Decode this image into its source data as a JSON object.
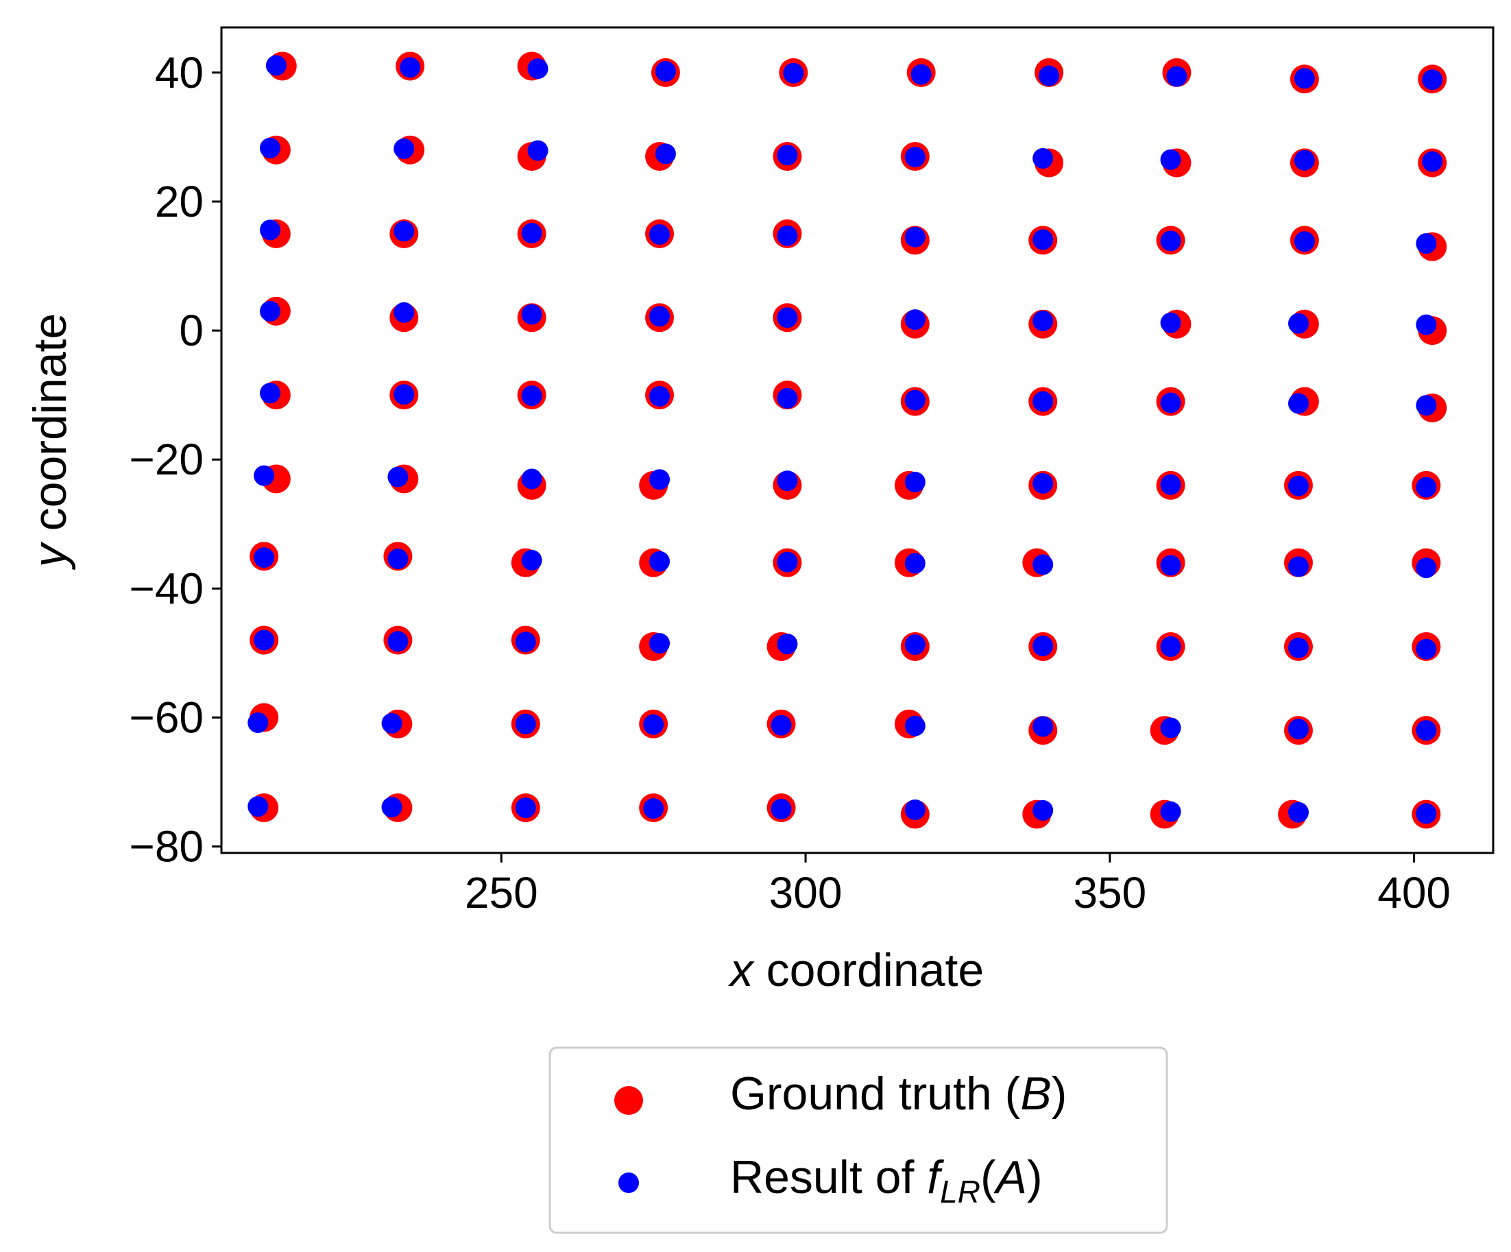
{
  "chart_data": {
    "type": "scatter",
    "title": "",
    "xlabel": {
      "var": "x",
      "rest": " coordinate"
    },
    "ylabel": {
      "var": "y",
      "rest": " coordinate"
    },
    "xlim": [
      204,
      413
    ],
    "ylim": [
      -81,
      47
    ],
    "xticks": [
      250,
      300,
      350,
      400
    ],
    "yticks": [
      -80,
      -60,
      -40,
      -20,
      0,
      20,
      40
    ],
    "grid": false,
    "legend_placement": "below",
    "x": [
      [
        213,
        234,
        255,
        276,
        297,
        318,
        339,
        360,
        381,
        402
      ],
      [
        212,
        234,
        255,
        276,
        297,
        318,
        339,
        361,
        382,
        403
      ],
      [
        212,
        234,
        255,
        276,
        297,
        318,
        339,
        360,
        382,
        403
      ],
      [
        212,
        234,
        255,
        276,
        297,
        318,
        339,
        360,
        382,
        403
      ],
      [
        212,
        233,
        254,
        275,
        296,
        318,
        339,
        360,
        381,
        402
      ],
      [
        212,
        233,
        254,
        275,
        296,
        317,
        339,
        360,
        381,
        402
      ],
      [
        211,
        233,
        254,
        275,
        296,
        317,
        338,
        360,
        381,
        402
      ],
      [
        211,
        233,
        254,
        275,
        296,
        317,
        339,
        360,
        381,
        402
      ],
      [
        211,
        233,
        254,
        275,
        296,
        317,
        339,
        359,
        381,
        402
      ],
      [
        211,
        232,
        254,
        275,
        296,
        317,
        338,
        359,
        380,
        402
      ]
    ],
    "y": [
      40,
      28,
      15,
      2,
      -10,
      -23,
      -36,
      -48,
      -61,
      -74
    ],
    "series": [
      {
        "name": "Ground truth",
        "name_var": "B",
        "color": "#ff0000",
        "marker": "large-circle",
        "points": [
          [
            [
              214,
              41
            ],
            [
              235,
              41
            ],
            [
              255,
              41
            ],
            [
              277,
              40
            ],
            [
              298,
              40
            ],
            [
              319,
              40
            ],
            [
              340,
              40
            ],
            [
              361,
              40
            ],
            [
              382,
              39
            ],
            [
              403,
              39
            ]
          ],
          [
            [
              213,
              28
            ],
            [
              235,
              28
            ],
            [
              255,
              27
            ],
            [
              276,
              27
            ],
            [
              297,
              27
            ],
            [
              318,
              27
            ],
            [
              340,
              26
            ],
            [
              361,
              26
            ],
            [
              382,
              26
            ],
            [
              403,
              26
            ]
          ],
          [
            [
              213,
              15
            ],
            [
              234,
              15
            ],
            [
              255,
              15
            ],
            [
              276,
              15
            ],
            [
              297,
              15
            ],
            [
              318,
              14
            ],
            [
              339,
              14
            ],
            [
              360,
              14
            ],
            [
              382,
              14
            ],
            [
              403,
              13
            ]
          ],
          [
            [
              213,
              3
            ],
            [
              234,
              2
            ],
            [
              255,
              2
            ],
            [
              276,
              2
            ],
            [
              297,
              2
            ],
            [
              318,
              1
            ],
            [
              339,
              1
            ],
            [
              361,
              1
            ],
            [
              382,
              1
            ],
            [
              403,
              0
            ]
          ],
          [
            [
              213,
              -10
            ],
            [
              234,
              -10
            ],
            [
              255,
              -10
            ],
            [
              276,
              -10
            ],
            [
              297,
              -10
            ],
            [
              318,
              -11
            ],
            [
              339,
              -11
            ],
            [
              360,
              -11
            ],
            [
              382,
              -11
            ],
            [
              403,
              -12
            ]
          ],
          [
            [
              213,
              -23
            ],
            [
              234,
              -23
            ],
            [
              255,
              -24
            ],
            [
              275,
              -24
            ],
            [
              297,
              -24
            ],
            [
              317,
              -24
            ],
            [
              339,
              -24
            ],
            [
              360,
              -24
            ],
            [
              381,
              -24
            ],
            [
              402,
              -24
            ]
          ],
          [
            [
              211,
              -35
            ],
            [
              233,
              -35
            ],
            [
              254,
              -36
            ],
            [
              275,
              -36
            ],
            [
              297,
              -36
            ],
            [
              317,
              -36
            ],
            [
              338,
              -36
            ],
            [
              360,
              -36
            ],
            [
              381,
              -36
            ],
            [
              402,
              -36
            ]
          ],
          [
            [
              211,
              -48
            ],
            [
              233,
              -48
            ],
            [
              254,
              -48
            ],
            [
              275,
              -49
            ],
            [
              296,
              -49
            ],
            [
              318,
              -49
            ],
            [
              339,
              -49
            ],
            [
              360,
              -49
            ],
            [
              381,
              -49
            ],
            [
              402,
              -49
            ]
          ],
          [
            [
              211,
              -60
            ],
            [
              233,
              -61
            ],
            [
              254,
              -61
            ],
            [
              275,
              -61
            ],
            [
              296,
              -61
            ],
            [
              317,
              -61
            ],
            [
              339,
              -62
            ],
            [
              359,
              -62
            ],
            [
              381,
              -62
            ],
            [
              402,
              -62
            ]
          ],
          [
            [
              211,
              -74
            ],
            [
              233,
              -74
            ],
            [
              254,
              -74
            ],
            [
              275,
              -74
            ],
            [
              296,
              -74
            ],
            [
              318,
              -75
            ],
            [
              338,
              -75
            ],
            [
              359,
              -75
            ],
            [
              380,
              -75
            ],
            [
              402,
              -75
            ]
          ]
        ]
      },
      {
        "name": "Result of",
        "name_var": "f",
        "name_sub": "LR",
        "name_arg": "A",
        "color": "#0000ff",
        "marker": "small-circle",
        "points": [
          [
            [
              213,
              41.1
            ],
            [
              235,
              40.8
            ],
            [
              256,
              40.6
            ],
            [
              277,
              40.2
            ],
            [
              298,
              39.9
            ],
            [
              319,
              39.7
            ],
            [
              340,
              39.5
            ],
            [
              361,
              39.4
            ],
            [
              382,
              39.1
            ],
            [
              403,
              38.9
            ]
          ],
          [
            [
              212,
              28.3
            ],
            [
              234,
              28.2
            ],
            [
              256,
              27.9
            ],
            [
              277,
              27.4
            ],
            [
              297,
              27.2
            ],
            [
              318,
              26.9
            ],
            [
              339,
              26.7
            ],
            [
              360,
              26.5
            ],
            [
              382,
              26.4
            ],
            [
              403,
              26.2
            ]
          ],
          [
            [
              212,
              15.6
            ],
            [
              234,
              15.4
            ],
            [
              255,
              15.1
            ],
            [
              276,
              14.9
            ],
            [
              297,
              14.7
            ],
            [
              318,
              14.5
            ],
            [
              339,
              14.1
            ],
            [
              360,
              13.9
            ],
            [
              382,
              13.8
            ],
            [
              402,
              13.5
            ]
          ],
          [
            [
              212,
              3
            ],
            [
              234,
              2.8
            ],
            [
              255,
              2.5
            ],
            [
              276,
              2.2
            ],
            [
              297,
              2
            ],
            [
              318,
              1.7
            ],
            [
              339,
              1.5
            ],
            [
              360,
              1.2
            ],
            [
              381,
              1.1
            ],
            [
              402,
              0.9
            ]
          ],
          [
            [
              212,
              -9.7
            ],
            [
              234,
              -9.9
            ],
            [
              255,
              -10.1
            ],
            [
              276,
              -10.2
            ],
            [
              297,
              -10.5
            ],
            [
              318,
              -10.8
            ],
            [
              339,
              -11
            ],
            [
              360,
              -11.2
            ],
            [
              381,
              -11.3
            ],
            [
              402,
              -11.6
            ]
          ],
          [
            [
              211,
              -22.5
            ],
            [
              233,
              -22.7
            ],
            [
              255,
              -23
            ],
            [
              276,
              -23.1
            ],
            [
              297,
              -23.3
            ],
            [
              318,
              -23.5
            ],
            [
              339,
              -23.7
            ],
            [
              360,
              -23.9
            ],
            [
              381,
              -24.1
            ],
            [
              402,
              -24.3
            ]
          ],
          [
            [
              211,
              -35.2
            ],
            [
              233,
              -35.4
            ],
            [
              255,
              -35.6
            ],
            [
              276,
              -35.8
            ],
            [
              297,
              -35.9
            ],
            [
              318,
              -36.1
            ],
            [
              339,
              -36.3
            ],
            [
              360,
              -36.4
            ],
            [
              381,
              -36.6
            ],
            [
              402,
              -36.8
            ]
          ],
          [
            [
              211,
              -48
            ],
            [
              233,
              -48.2
            ],
            [
              254,
              -48.3
            ],
            [
              276,
              -48.5
            ],
            [
              297,
              -48.6
            ],
            [
              318,
              -48.7
            ],
            [
              339,
              -48.9
            ],
            [
              360,
              -49
            ],
            [
              381,
              -49.2
            ],
            [
              402,
              -49.4
            ]
          ],
          [
            [
              210,
              -60.8
            ],
            [
              232,
              -60.9
            ],
            [
              254,
              -61
            ],
            [
              275,
              -61.1
            ],
            [
              296,
              -61.2
            ],
            [
              318,
              -61.3
            ],
            [
              339,
              -61.4
            ],
            [
              360,
              -61.6
            ],
            [
              381,
              -61.8
            ],
            [
              402,
              -62
            ]
          ],
          [
            [
              210,
              -73.8
            ],
            [
              232,
              -73.9
            ],
            [
              254,
              -74
            ],
            [
              275,
              -74.1
            ],
            [
              296,
              -74.2
            ],
            [
              318,
              -74.3
            ],
            [
              339,
              -74.4
            ],
            [
              360,
              -74.6
            ],
            [
              381,
              -74.7
            ],
            [
              402,
              -74.9
            ]
          ]
        ]
      }
    ]
  }
}
